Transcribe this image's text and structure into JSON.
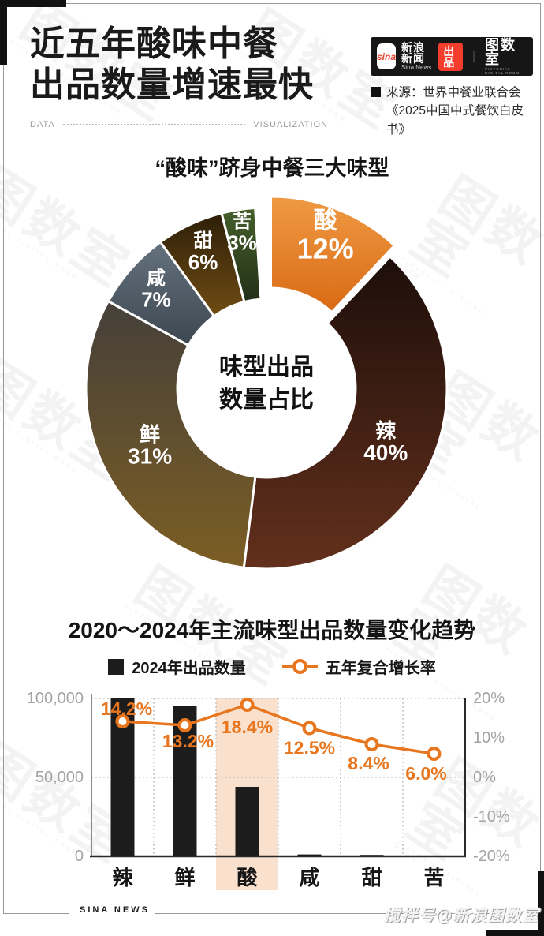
{
  "page": {
    "title_line1": "近五年酸味中餐",
    "title_line2": "出品数量增速最快",
    "divider_left": "DATA",
    "divider_right": "VISUALIZATION",
    "watermark_big": "图数室",
    "watermark_small": "PICTORIAL DIGITAL ROOM"
  },
  "header_logo": {
    "sina_icon": "sina",
    "brand": "新浪新闻",
    "brand_en": "Sina News",
    "badge": "出品",
    "separator": "｜",
    "studio": "图数室",
    "studio_sub": "PICTORIAL DIGITAL ROOM"
  },
  "source": {
    "text": "来源：世界中餐业联合会《2025中国中式餐饮白皮书》"
  },
  "footer": {
    "left": "SINA NEWS",
    "handle": "搅拌号@新浪图数室"
  },
  "chart_data": [
    {
      "type": "pie",
      "variant": "donut",
      "title": "“酸味”跻身中餐三大味型",
      "center_line1": "味型出品",
      "center_line2": "数量占比",
      "unit": "%",
      "slices": [
        {
          "label": "酸",
          "value": 12,
          "color_top": "#f09a43",
          "color_bottom": "#d96a15",
          "exploded": true
        },
        {
          "label": "辣",
          "value": 40,
          "color_top": "#1d0e0a",
          "color_bottom": "#63301c"
        },
        {
          "label": "鲜",
          "value": 31,
          "color_top": "#45403a",
          "color_bottom": "#7c5e24"
        },
        {
          "label": "咸",
          "value": 7,
          "color_top": "#64727e",
          "color_bottom": "#3d4750"
        },
        {
          "label": "甜",
          "value": 6,
          "color_top": "#2e1f08",
          "color_bottom": "#6f4c13"
        },
        {
          "label": "苦",
          "value": 3,
          "color_top": "#455f2b",
          "color_bottom": "#223018"
        }
      ]
    },
    {
      "type": "bar",
      "combo": "bar+line",
      "title": "2020～2024年主流味型出品数量变化趋势",
      "categories": [
        "辣",
        "鲜",
        "酸",
        "咸",
        "甜",
        "苦"
      ],
      "series": [
        {
          "name": "2024年出品数量",
          "type": "bar",
          "axis": "left",
          "color": "#1c1c1c",
          "values": [
            100000,
            95000,
            44000,
            1200,
            900,
            300
          ]
        },
        {
          "name": "五年复合增长率",
          "type": "line",
          "axis": "right",
          "color": "#e8761f",
          "values": [
            14.2,
            13.2,
            18.4,
            12.5,
            8.4,
            6.0
          ],
          "labels": [
            "14.2%",
            "13.2%",
            "18.4%",
            "12.5%",
            "8.4%",
            "6.0%"
          ]
        }
      ],
      "left_axis": {
        "min": 0,
        "max": 100000,
        "ticks": [
          "100,000",
          "50,000",
          "0"
        ]
      },
      "right_axis": {
        "min": -20,
        "max": 20,
        "ticks": [
          "20%",
          "10%",
          "0%",
          "-10%",
          "-20%"
        ]
      },
      "highlight_category": "酸",
      "highlight_color": "#fae1ce",
      "grid": "dotted"
    }
  ]
}
